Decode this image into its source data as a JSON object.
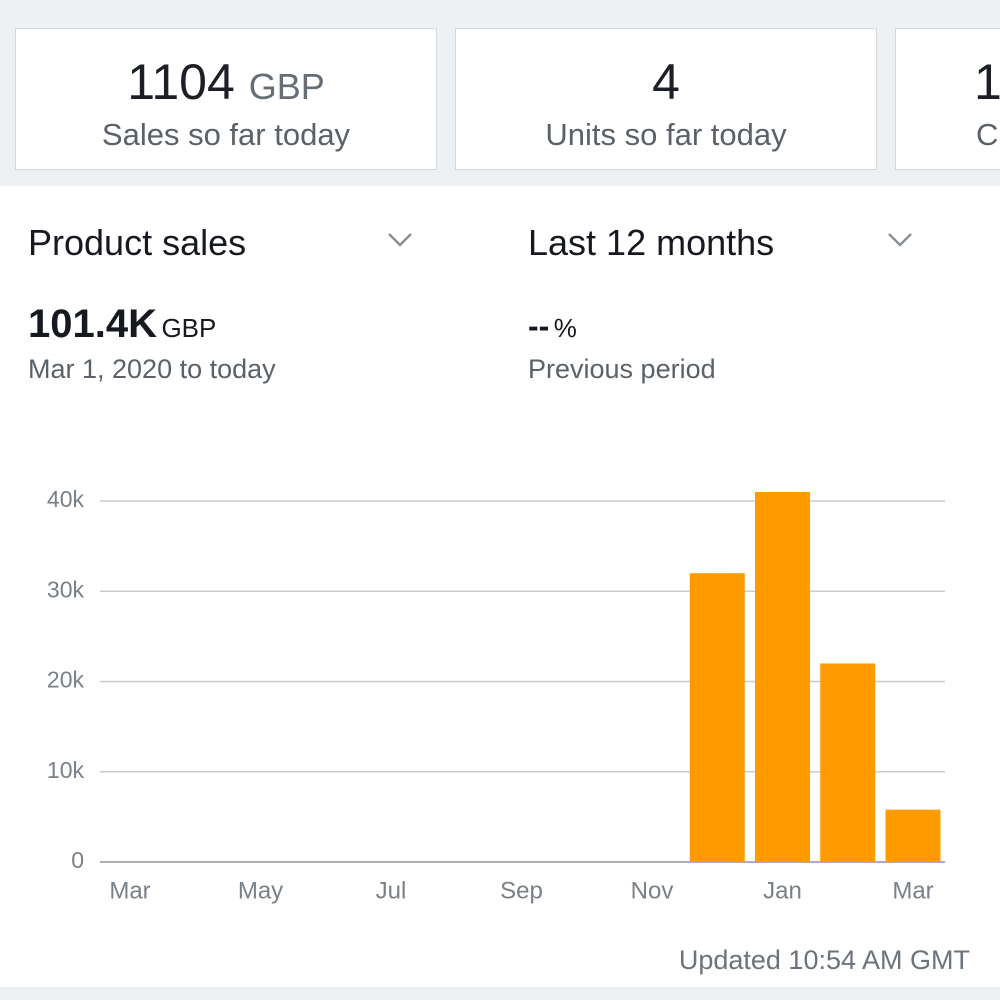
{
  "cards": [
    {
      "value": "1104",
      "unit": "GBP",
      "label": "Sales so far today"
    },
    {
      "value": "4",
      "label": "Units so far today"
    },
    {
      "value": "1",
      "label": "C"
    }
  ],
  "filters": {
    "metric": "Product sales",
    "period": "Last 12 months"
  },
  "summary": {
    "total": "101.4K",
    "unit": "GBP",
    "range": "Mar 1, 2020 to today",
    "change": "--",
    "change_unit": "%",
    "comparison": "Previous period"
  },
  "chart_data": {
    "type": "bar",
    "categories": [
      "Mar",
      null,
      "May",
      null,
      "Jul",
      null,
      "Sep",
      null,
      "Nov",
      null,
      "Jan",
      null,
      "Mar"
    ],
    "values": [
      0,
      0,
      0,
      0,
      0,
      0,
      0,
      0,
      0,
      32000,
      41000,
      22000,
      5800
    ],
    "color": "#ff9a00",
    "ylim": [
      0,
      42000
    ],
    "yticks": [
      0,
      {
        "value": 10000,
        "label": "10k"
      },
      {
        "value": 20000,
        "label": "20k"
      },
      {
        "value": 30000,
        "label": "30k"
      },
      {
        "value": 40000,
        "label": "40k"
      }
    ],
    "grid": true
  },
  "footer": {
    "updated": "Updated 10:54 AM GMT"
  }
}
